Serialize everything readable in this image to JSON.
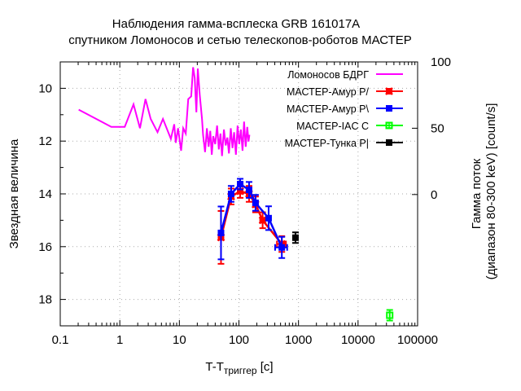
{
  "chart_data": {
    "type": "scatter",
    "title_lines": [
      "Наблюдения гамма-всплеска GRB 161017A",
      "спутником Ломоносов и сетью телескопов-роботов МАСТЕР"
    ],
    "xlabel": "T-T",
    "xlabel_sub": "триггер",
    "xlabel_unit": " [c]",
    "ylabel": "Звездная величина",
    "y2label_lines": [
      "Гамма поток",
      "(диапазон 80-300 keV) [count/s]"
    ],
    "xscale": "log",
    "xlim": [
      0.1,
      100000
    ],
    "ylim": [
      19,
      9
    ],
    "y2lim": [
      -99,
      100
    ],
    "grid": true,
    "legend_position": "top-right",
    "xticks": [
      {
        "v": 0.1,
        "label": "0.1"
      },
      {
        "v": 1,
        "label": "1"
      },
      {
        "v": 10,
        "label": "10"
      },
      {
        "v": 100,
        "label": "100"
      },
      {
        "v": 1000,
        "label": "1000"
      },
      {
        "v": 10000,
        "label": "10000"
      },
      {
        "v": 100000,
        "label": "100000"
      }
    ],
    "yticks": [
      {
        "v": 10,
        "label": "10"
      },
      {
        "v": 12,
        "label": "12"
      },
      {
        "v": 14,
        "label": "14"
      },
      {
        "v": 16,
        "label": "16"
      },
      {
        "v": 18,
        "label": "18"
      }
    ],
    "y2ticks": [
      {
        "v": 0,
        "label": "0"
      },
      {
        "v": 50,
        "label": "50"
      },
      {
        "v": 100,
        "label": "100"
      }
    ],
    "series": [
      {
        "name": "Ломоносов БДРГ",
        "color": "#ff00ff",
        "axis": "y2",
        "style": "line",
        "points": [
          [
            0.204,
            64
          ],
          [
            0.72,
            51
          ],
          [
            1.21,
            51
          ],
          [
            1.7,
            68
          ],
          [
            2.18,
            50
          ],
          [
            2.7,
            72
          ],
          [
            3.3,
            57
          ],
          [
            4.3,
            47
          ],
          [
            5.3,
            57
          ],
          [
            7.2,
            42
          ],
          [
            8.2,
            53
          ],
          [
            8.7,
            39
          ],
          [
            9.5,
            50
          ],
          [
            10.7,
            33
          ],
          [
            11.6,
            50
          ],
          [
            12.8,
            46
          ],
          [
            14.1,
            72
          ],
          [
            15.8,
            74
          ],
          [
            17,
            96
          ],
          [
            18.1,
            88
          ],
          [
            19.3,
            62
          ],
          [
            20.4,
            95
          ],
          [
            22,
            75
          ],
          [
            24,
            57
          ],
          [
            25,
            45
          ],
          [
            27,
            32
          ],
          [
            29,
            50
          ],
          [
            31,
            36
          ],
          [
            33,
            48
          ],
          [
            35,
            30
          ],
          [
            37,
            44
          ],
          [
            40,
            38
          ],
          [
            43,
            52
          ],
          [
            46,
            34
          ],
          [
            49,
            46
          ],
          [
            52,
            29
          ],
          [
            56,
            49
          ],
          [
            60,
            37
          ],
          [
            64,
            43
          ],
          [
            68,
            31
          ],
          [
            73,
            50
          ],
          [
            78,
            35
          ],
          [
            83,
            47
          ],
          [
            89,
            30
          ],
          [
            95,
            52
          ],
          [
            101,
            38
          ],
          [
            108,
            49
          ],
          [
            115,
            33
          ],
          [
            122,
            55
          ],
          [
            130,
            36
          ],
          [
            138,
            51
          ],
          [
            145,
            40
          ],
          [
            150,
            45
          ]
        ]
      },
      {
        "name": "МАСТЕР-Амур P/",
        "color": "#ff0000",
        "axis": "y",
        "style": "errorlines",
        "marker": "cross",
        "points": [
          [
            50,
            15.65,
            1.0,
            0
          ],
          [
            74,
            14.1,
            0.3,
            0
          ],
          [
            105,
            13.9,
            0.25,
            0
          ],
          [
            148,
            14.0,
            0.3,
            0
          ],
          [
            190,
            14.4,
            0.3,
            0
          ],
          [
            250,
            15.0,
            0.3,
            0
          ],
          [
            525,
            15.9,
            0.3,
            90
          ]
        ]
      },
      {
        "name": "МАСТЕР-Амур P\\",
        "color": "#0000ff",
        "axis": "y",
        "style": "errorlines",
        "marker": "star",
        "points": [
          [
            50,
            15.48,
            1.0,
            0
          ],
          [
            74,
            14.0,
            0.3,
            0
          ],
          [
            105,
            13.63,
            0.2,
            0
          ],
          [
            148,
            13.85,
            0.3,
            0
          ],
          [
            190,
            14.34,
            0.3,
            0
          ],
          [
            315,
            14.92,
            0.45,
            0
          ],
          [
            525,
            16.03,
            0.4,
            120
          ]
        ]
      },
      {
        "name": "МАСТЕР-IAC C",
        "color": "#00ff00",
        "axis": "y",
        "style": "errorpoints",
        "marker": "square-open",
        "points": [
          [
            34000,
            18.6,
            0.2,
            0
          ]
        ]
      },
      {
        "name": "МАСТЕР-Тунка P|",
        "color": "#000000",
        "axis": "y",
        "style": "errorpoints",
        "marker": "square",
        "points": [
          [
            890,
            15.66,
            0.2,
            0
          ]
        ]
      }
    ]
  }
}
